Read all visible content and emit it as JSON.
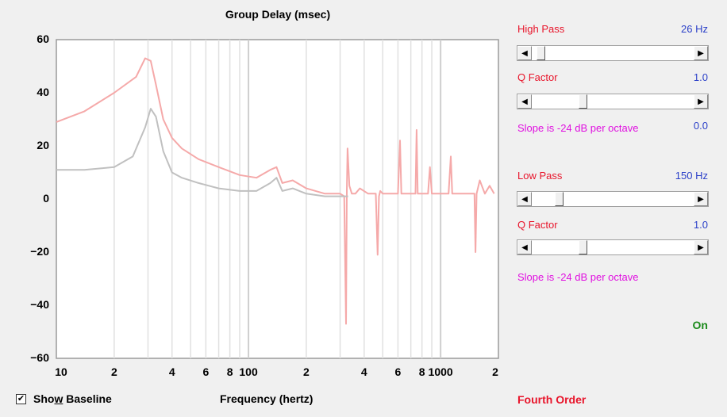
{
  "chart": {
    "title": "Group Delay (msec)",
    "xlabel": "Frequency (hertz)"
  },
  "chart_data": {
    "type": "line",
    "title": "Group Delay (msec)",
    "xlabel": "Frequency (hertz)",
    "ylabel": "",
    "xscale": "log",
    "xlim": [
      10,
      2000
    ],
    "ylim": [
      -60,
      60
    ],
    "grid": true,
    "y_ticks": [
      "60",
      "40",
      "20",
      "0",
      "−20",
      "−40",
      "−60"
    ],
    "x_ticks": [
      "10",
      "2",
      "4",
      "6",
      "8",
      "100",
      "2",
      "4",
      "6",
      "8",
      "1000",
      "2"
    ],
    "series": [
      {
        "color": "#f5a9a9",
        "x": [
          10,
          14,
          20,
          26,
          29,
          31,
          33,
          36,
          40,
          45,
          55,
          70,
          90,
          110,
          130,
          140,
          150,
          170,
          200,
          250,
          300,
          315,
          322,
          325,
          328,
          335,
          345,
          360,
          380,
          420,
          460,
          470,
          478,
          485,
          500,
          520,
          600,
          615,
          625,
          700,
          740,
          750,
          760,
          800,
          860,
          880,
          900,
          1000,
          1100,
          1130,
          1150,
          1300,
          1500,
          1520,
          1540,
          1600,
          1700,
          1800,
          1900
        ],
        "y": [
          29,
          33,
          40,
          46,
          53,
          52,
          43,
          30,
          23,
          19,
          15,
          12,
          9,
          8,
          11,
          12,
          6,
          7,
          4,
          2,
          2,
          1,
          -47,
          3,
          19,
          5,
          2,
          2,
          4,
          2,
          2,
          -21,
          1,
          3,
          2,
          2,
          2,
          22,
          2,
          2,
          2,
          26,
          2,
          2,
          2,
          12,
          2,
          2,
          2,
          16,
          2,
          2,
          2,
          -20,
          2,
          7,
          2,
          5,
          2
        ]
      },
      {
        "color": "#c0c0c0",
        "x": [
          10,
          14,
          20,
          25,
          29,
          31,
          33,
          36,
          40,
          45,
          55,
          70,
          90,
          110,
          130,
          140,
          150,
          170,
          200,
          250,
          300,
          330
        ],
        "y": [
          11,
          11,
          12,
          16,
          27,
          34,
          31,
          18,
          10,
          8,
          6,
          4,
          3,
          3,
          6,
          8,
          3,
          4,
          2,
          1,
          1,
          1
        ]
      }
    ]
  },
  "controls": {
    "high_pass": {
      "label": "High Pass",
      "value": "26 Hz",
      "slider": 0.03
    },
    "hp_q": {
      "label": "Q Factor",
      "value": "1.0",
      "slider": 0.3
    },
    "hp_slope": {
      "text": "Slope is -24 dB per octave",
      "value": "0.0"
    },
    "low_pass": {
      "label": "Low Pass",
      "value": "150 Hz",
      "slider": 0.15
    },
    "lp_q": {
      "label": "Q Factor",
      "value": "1.0",
      "slider": 0.3
    },
    "lp_slope": {
      "text": "Slope is -24 dB per octave"
    },
    "status": "On",
    "order": "Fourth Order"
  },
  "show_baseline": {
    "label": "Show Baseline",
    "checked": true,
    "mark": "✔"
  },
  "arrows": {
    "left": "◀",
    "right": "▶"
  },
  "colors": {
    "red": "#e8142a",
    "blue": "#2a3fc8",
    "magenta": "#e010e0",
    "green": "#1a8a1a"
  }
}
